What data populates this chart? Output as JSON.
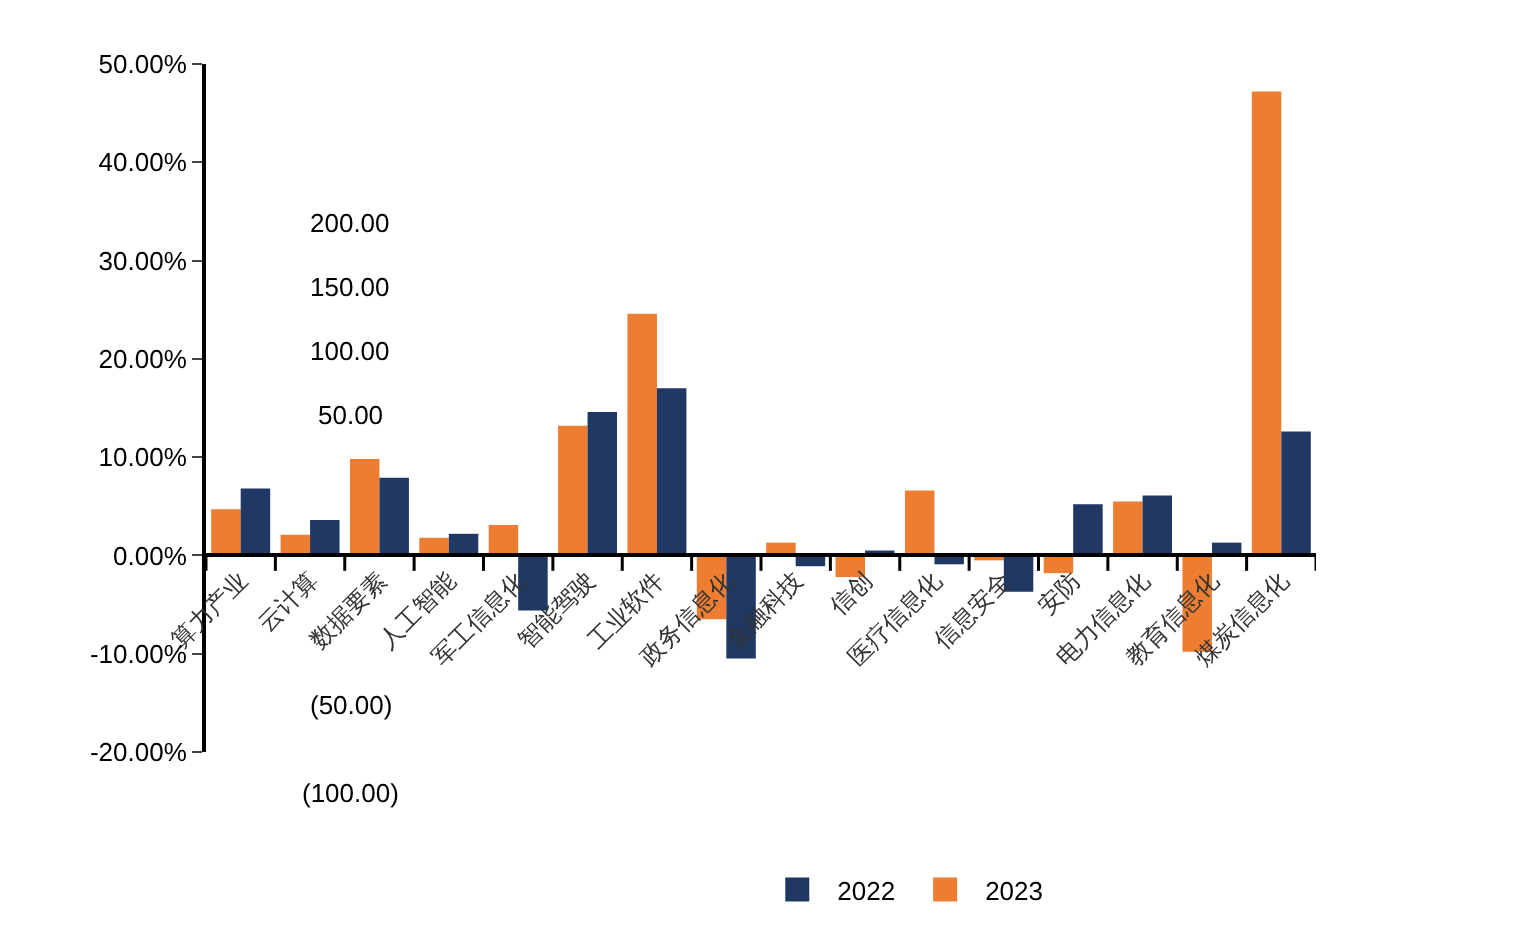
{
  "chart_data": {
    "type": "bar",
    "categories": [
      "算力产业",
      "云计算",
      "数据要素",
      "人工智能",
      "军工信息化",
      "智能驾驶",
      "工业软件",
      "政务信息化",
      "金融科技",
      "信创",
      "医疗信息化",
      "信息安全",
      "安防",
      "电力信息化",
      "教育信息化",
      "煤炭信息化"
    ],
    "series": [
      {
        "name": "2023",
        "color": "#ed7d31",
        "values": [
          4.7,
          2.1,
          9.8,
          1.8,
          3.1,
          13.2,
          24.6,
          -6.5,
          1.3,
          -2.2,
          6.6,
          -0.5,
          -1.8,
          5.5,
          -9.8,
          47.2
        ]
      },
      {
        "name": "2022",
        "color": "#1f3864",
        "values": [
          6.8,
          3.6,
          7.9,
          2.2,
          -5.6,
          14.6,
          17.0,
          -10.5,
          -1.1,
          0.5,
          -0.9,
          -3.7,
          5.2,
          6.1,
          1.3,
          12.6
        ]
      }
    ],
    "ylim": [
      -20,
      50
    ],
    "yticks": [
      {
        "value": -20,
        "label": "-20.00%"
      },
      {
        "value": -10,
        "label": "-10.00%"
      },
      {
        "value": 0,
        "label": "0.00%"
      },
      {
        "value": 10,
        "label": "10.00%"
      },
      {
        "value": 20,
        "label": "20.00%"
      },
      {
        "value": 30,
        "label": "30.00%"
      },
      {
        "value": 40,
        "label": "40.00%"
      },
      {
        "value": 50,
        "label": "50.00%"
      }
    ],
    "annotations": [
      "200.00",
      "150.00",
      "100.00",
      "50.00",
      "(50.00)",
      "(100.00)"
    ],
    "grid": false,
    "legend": "bottom"
  }
}
